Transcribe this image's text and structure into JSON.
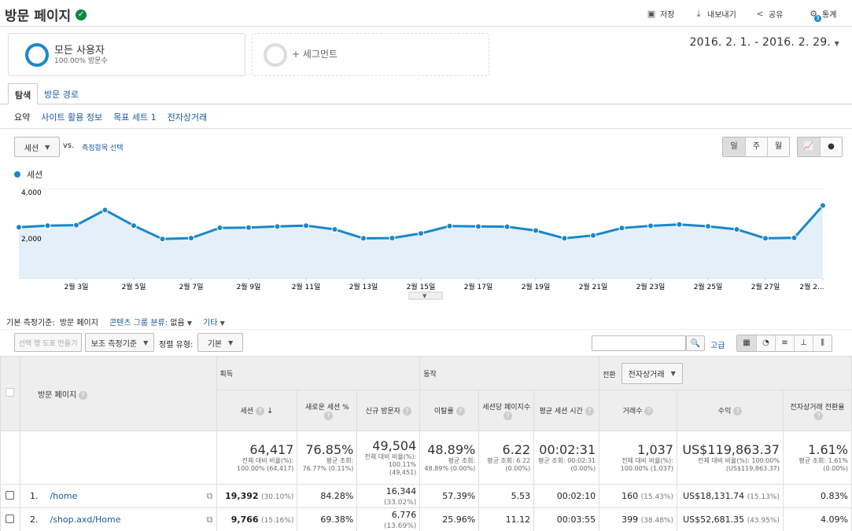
{
  "header": {
    "title": "방문 페이지",
    "save": "저장",
    "export": "내보내기",
    "share": "공유",
    "insights": "통계",
    "insights_badge": "3"
  },
  "segments": {
    "all_users": "모든 사용자",
    "all_users_sub": "100.00% 방문수",
    "add_segment": "+ 세그먼트"
  },
  "date_range": "2016. 2. 1. - 2016. 2. 29.",
  "tabs": [
    "탐색",
    "방문 경로"
  ],
  "subtabs": [
    "요약",
    "사이트 활용 정보",
    "목표 세트 1",
    "전자상거래"
  ],
  "chart_controls": {
    "metric": "세션",
    "vs": "vs.",
    "select_metric": "측정항목 선택",
    "day": "일",
    "week": "주",
    "month": "월"
  },
  "chart_data": {
    "type": "line",
    "series": [
      {
        "name": "세션",
        "values": [
          2280,
          2350,
          2370,
          3050,
          2350,
          1750,
          1790,
          2250,
          2260,
          2310,
          2350,
          2180,
          1780,
          1790,
          2000,
          2330,
          2310,
          2300,
          2130,
          1780,
          1910,
          2240,
          2340,
          2400,
          2320,
          2180,
          1780,
          1800,
          3250
        ]
      }
    ],
    "x_tick_labels": [
      "2월 3일",
      "2월 5일",
      "2월 7일",
      "2월 9일",
      "2월 11일",
      "2월 13일",
      "2월 15일",
      "2월 17일",
      "2월 19일",
      "2월 21일",
      "2월 23일",
      "2월 25일",
      "2월 27일",
      "2월 2..."
    ],
    "y_ticks": [
      "4,000",
      "2,000"
    ],
    "ylim": [
      0,
      4000
    ],
    "grid": true,
    "legend": "top-left",
    "colors": {
      "line": "#1a87c8",
      "fill": "#e3f0fa"
    }
  },
  "dimension_bar": {
    "primary_label": "기본 측정기준:",
    "primary_value": "방문 페이지",
    "content_group": "콘텐츠 그룹 분류:",
    "content_group_value": "없음",
    "other": "기타"
  },
  "table_controls": {
    "plot_rows": "선택 행 도표 만들기",
    "secondary": "보조 측정기준",
    "sort_label": "정렬 유형:",
    "sort_value": "기본",
    "advanced": "고급"
  },
  "table": {
    "groups": {
      "acquisition": "획득",
      "behavior": "동작",
      "conversion": "전환",
      "conversion_select": "전자상거래"
    },
    "dim_header": "방문 페이지",
    "columns": [
      "세션",
      "새로운 세션 %",
      "신규 방문자",
      "이탈률",
      "세션당 페이지수",
      "평균 세션 시간",
      "거래수",
      "수익",
      "전자상거래 전환율"
    ],
    "totals": [
      {
        "value": "64,417",
        "sub": "전체 대비 비율(%): 100.00% (64,417)"
      },
      {
        "value": "76.85%",
        "sub": "평균 조회: 76.77% (0.11%)"
      },
      {
        "value": "49,504",
        "sub": "전체 대비 비율(%): 100.11% (49,451)"
      },
      {
        "value": "48.89%",
        "sub": "평균 조회: 48.89% (0.00%)"
      },
      {
        "value": "6.22",
        "sub": "평균 조회: 6.22 (0.00%)"
      },
      {
        "value": "00:02:31",
        "sub": "평균 조회: 00:02:31 (0.00%)"
      },
      {
        "value": "1,037",
        "sub": "전체 대비 비율(%): 100.00% (1,037)"
      },
      {
        "value": "US$119,863.37",
        "sub": "전체 대비 비율(%): 100.00% (US$119,863.37)"
      },
      {
        "value": "1.61%",
        "sub": "평균 조회: 1.61% (0.00%)"
      }
    ],
    "rows": [
      {
        "num": "1.",
        "page": "/home",
        "sessions": "19,392",
        "sessions_pct": "(30.10%)",
        "new_pct": "84.28%",
        "new_users": "16,344",
        "new_users_pct": "(33.02%)",
        "bounce": "57.39%",
        "pages": "5.53",
        "duration": "00:02:10",
        "tx": "160",
        "tx_pct": "(15.43%)",
        "revenue": "US$18,131.74",
        "revenue_pct": "(15.13%)",
        "conv": "0.83%"
      },
      {
        "num": "2.",
        "page": "/shop.axd/Home",
        "sessions": "9,766",
        "sessions_pct": "(15.16%)",
        "new_pct": "69.38%",
        "new_users": "6,776",
        "new_users_pct": "(13.69%)",
        "bounce": "25.96%",
        "pages": "11.12",
        "duration": "00:03:55",
        "tx": "399",
        "tx_pct": "(38.48%)",
        "revenue": "US$52,681.35",
        "revenue_pct": "(43.95%)",
        "conv": "4.09%"
      }
    ]
  }
}
